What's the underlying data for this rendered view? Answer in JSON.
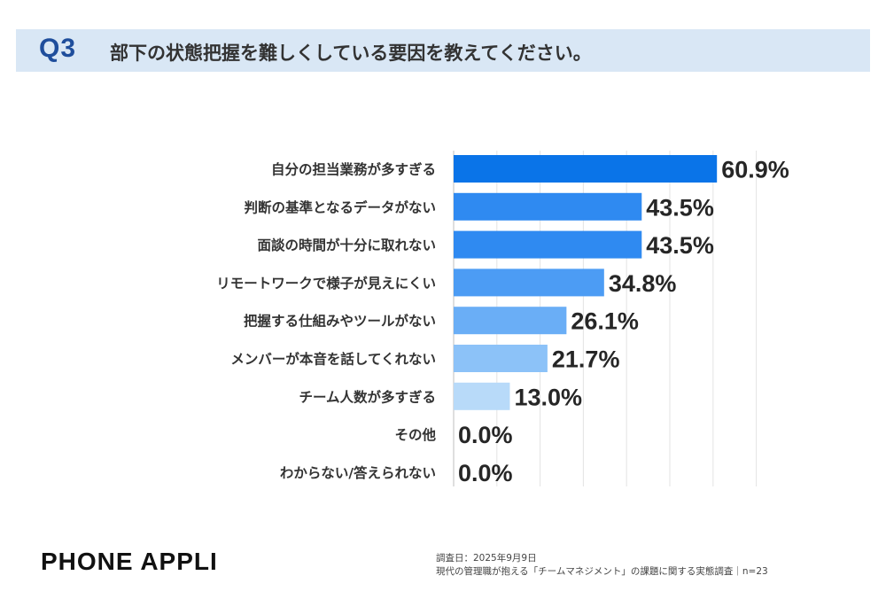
{
  "question": {
    "number": "Q3",
    "text": "部下の状態把握を難しくしている要因を教えてください。"
  },
  "chart_data": {
    "type": "bar",
    "orientation": "horizontal",
    "categories": [
      "自分の担当業務が多すぎる",
      "判断の基準となるデータがない",
      "面談の時間が十分に取れない",
      "リモートワークで様子が見えにくい",
      "把握する仕組みやツールがない",
      "メンバーが本音を話してくれない",
      "チーム人数が多すぎる",
      "その他",
      "わからない/答えられない"
    ],
    "values": [
      60.9,
      43.5,
      43.5,
      34.8,
      26.1,
      21.7,
      13.0,
      0.0,
      0.0
    ],
    "value_labels": [
      "60.9%",
      "43.5%",
      "43.5%",
      "34.8%",
      "26.1%",
      "21.7%",
      "13.0%",
      "0.0%",
      "0.0%"
    ],
    "xlim": [
      0,
      70
    ],
    "grid": true,
    "bar_colors": [
      "#0a74e8",
      "#2f8af1",
      "#2f8af1",
      "#4c9cf4",
      "#6aaef6",
      "#8cc2f8",
      "#b8daf9",
      "#b8daf9",
      "#b8daf9"
    ]
  },
  "footer": {
    "brand": "PHONE APPLI",
    "source_line1": "調査日：2025年9月9日",
    "source_line2": "現代の管理職が抱える「チームマネジメント」の課題に関する実態調査｜n=23"
  },
  "colors": {
    "header_band": "#d9e7f5",
    "question_number": "#1f4e9c"
  }
}
